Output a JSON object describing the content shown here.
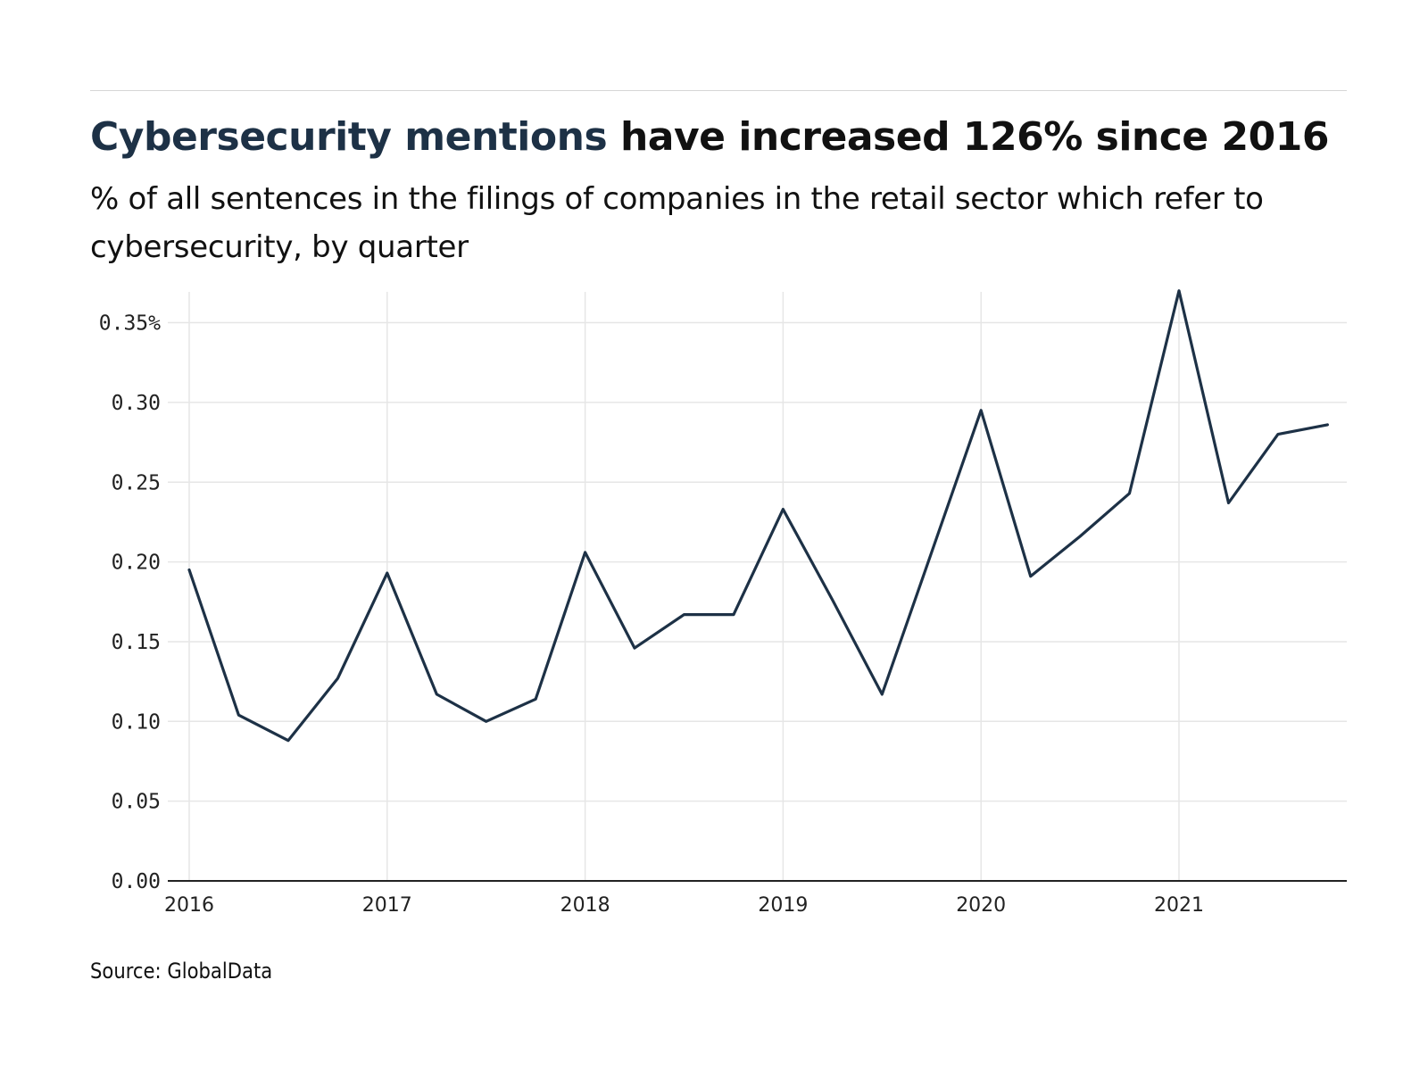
{
  "header": {
    "title_highlight": "Cybersecurity mentions",
    "title_rest": " have increased 126% since 2016",
    "subtitle": "% of all sentences in the filings of companies in the retail sector which refer to cybersecurity, by quarter"
  },
  "footer": {
    "source": "Source: GlobalData"
  },
  "colors": {
    "line": "#1d3146",
    "title_highlight": "#1d3146",
    "grid": "#e6e6e6",
    "axis": "#222222"
  },
  "chart_data": {
    "type": "line",
    "title": "Cybersecurity mentions have increased 126% since 2016",
    "subtitle": "% of all sentences in the filings of companies in the retail sector which refer to cybersecurity, by quarter",
    "xlabel": "",
    "ylabel": "",
    "x": [
      "2016 Q1",
      "2016 Q2",
      "2016 Q3",
      "2016 Q4",
      "2017 Q1",
      "2017 Q2",
      "2017 Q3",
      "2017 Q4",
      "2018 Q1",
      "2018 Q2",
      "2018 Q3",
      "2018 Q4",
      "2019 Q1",
      "2019 Q2",
      "2019 Q3",
      "2019 Q4",
      "2020 Q1",
      "2020 Q2",
      "2020 Q3",
      "2020 Q4",
      "2021 Q1",
      "2021 Q2",
      "2021 Q3",
      "2021 Q4"
    ],
    "series": [
      {
        "values": [
          0.195,
          0.104,
          0.088,
          0.127,
          0.193,
          0.117,
          0.1,
          0.114,
          0.206,
          0.146,
          0.167,
          0.167,
          0.233,
          0.176,
          0.117,
          0.206,
          0.295,
          0.191,
          0.216,
          0.243,
          0.37,
          0.237,
          0.28,
          0.286
        ]
      }
    ],
    "x_tick_labels": [
      "2016",
      "2017",
      "2018",
      "2019",
      "2020",
      "2021"
    ],
    "y_tick_labels": [
      "0.00",
      "0.05",
      "0.10",
      "0.15",
      "0.20",
      "0.25",
      "0.30",
      "0.35%"
    ],
    "y_ticks": [
      0,
      0.05,
      0.1,
      0.15,
      0.2,
      0.25,
      0.3,
      0.35
    ],
    "ylim": [
      0,
      0.37
    ],
    "grid": true,
    "legend": "none"
  }
}
